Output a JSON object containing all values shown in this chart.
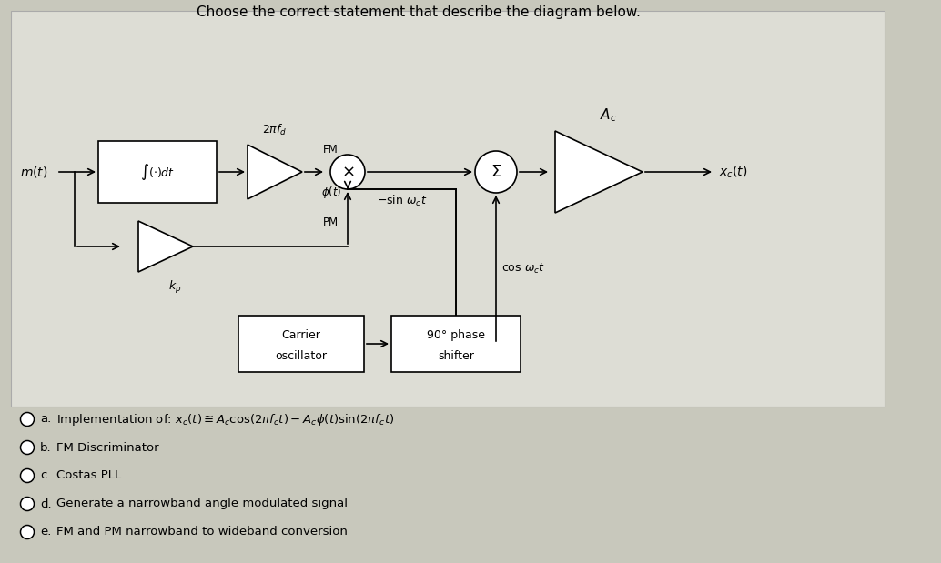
{
  "title": "Choose the correct statement that describe the diagram below.",
  "panel_bg": "#ddddd5",
  "outer_bg": "#c8c8bc",
  "options": [
    [
      "a.",
      "Implementation of: $x_c(t) \\cong A_c\\cos(2\\pi f_ct) - A_c\\phi(t)\\sin(2\\pi f_ct)$"
    ],
    [
      "b.",
      "FM Discriminator"
    ],
    [
      "c.",
      "Costas PLL"
    ],
    [
      "d.",
      "Generate a narrowband angle modulated signal"
    ],
    [
      "e.",
      "FM and PM narrowband to wideband conversion"
    ]
  ],
  "diagram": {
    "m_label": "$m(t)$",
    "integrator_label": "$\\int(\\cdot)dt$",
    "gain_fm_label": "$2\\pi f_d$",
    "fm_label": "FM",
    "phi_label": "$\\phi(t)$",
    "pm_label": "PM",
    "kp_label": "$k_p$",
    "mult_sym": "$\\times$",
    "sum_sym": "$\\Sigma$",
    "Ac_label": "$A_c$",
    "xc_label": "$x_c(t)$",
    "carrier_label1": "Carrier",
    "carrier_label2": "oscillator",
    "phase_label1": "90° phase",
    "phase_label2": "shifter",
    "neg_sin_label": "$-\\sin\\,\\omega_c t$",
    "cos_label": "$\\cos\\,\\omega_c t$"
  }
}
